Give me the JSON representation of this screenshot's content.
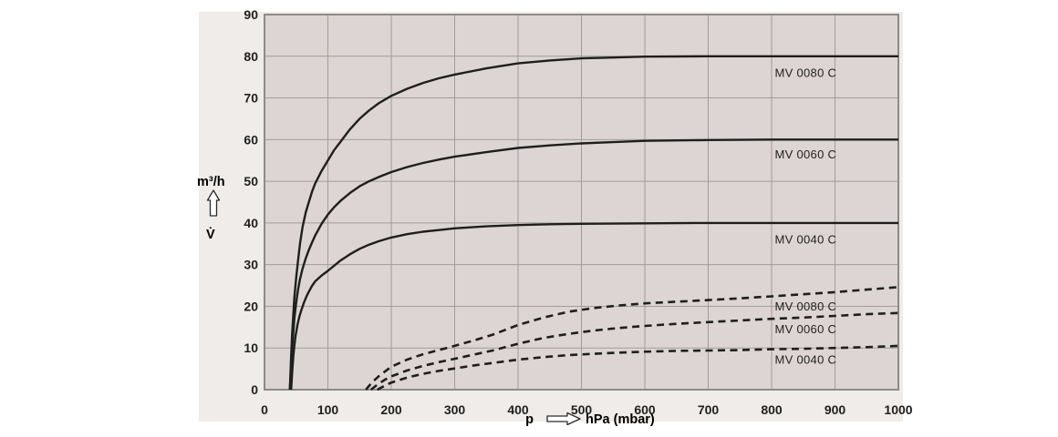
{
  "figure": {
    "y_axis_unit": "m³/h",
    "y_axis_symbol": "V̇",
    "x_axis_prefix": "p",
    "x_axis_unit": "hPa (mbar)"
  },
  "chart_data": {
    "type": "line",
    "title": "",
    "xlabel": "p → hPa (mbar)",
    "ylabel": "V̇ (m³/h)",
    "xlim": [
      0,
      1000
    ],
    "ylim": [
      0,
      90
    ],
    "x_ticks": [
      0,
      100,
      200,
      300,
      400,
      500,
      600,
      700,
      800,
      900,
      1000
    ],
    "y_ticks": [
      0,
      10,
      20,
      30,
      40,
      50,
      60,
      70,
      80,
      90
    ],
    "grid": true,
    "legend_position": "inline-right",
    "colors": {
      "panel_bg": "#efece9",
      "plot_bg": "#ddd5d3",
      "grid": "#a09c9a",
      "frame": "#8b8b8b",
      "curve": "#1e1e1e",
      "text": "#1f1f1f"
    },
    "series": [
      {
        "name": "MV 0080 C",
        "style": "solid",
        "label": {
          "text": "MV 0080 C",
          "x": 805,
          "y": 76
        },
        "points": [
          [
            40,
            0
          ],
          [
            41,
            4
          ],
          [
            42,
            8
          ],
          [
            43.5,
            13
          ],
          [
            45,
            17
          ],
          [
            47,
            22
          ],
          [
            50,
            27
          ],
          [
            53,
            31
          ],
          [
            56,
            35
          ],
          [
            60,
            39
          ],
          [
            65,
            42.5
          ],
          [
            70,
            45
          ],
          [
            75,
            47.5
          ],
          [
            80,
            49.5
          ],
          [
            90,
            52.5
          ],
          [
            100,
            55
          ],
          [
            110,
            57.5
          ],
          [
            120,
            59.5
          ],
          [
            135,
            62.5
          ],
          [
            150,
            65
          ],
          [
            165,
            67
          ],
          [
            180,
            68.7
          ],
          [
            200,
            70.5
          ],
          [
            225,
            72.2
          ],
          [
            250,
            73.6
          ],
          [
            275,
            74.7
          ],
          [
            300,
            75.6
          ],
          [
            350,
            77.1
          ],
          [
            400,
            78.3
          ],
          [
            450,
            79
          ],
          [
            500,
            79.5
          ],
          [
            550,
            79.7
          ],
          [
            600,
            79.9
          ],
          [
            700,
            80
          ],
          [
            800,
            80
          ],
          [
            900,
            80
          ],
          [
            1000,
            80
          ]
        ]
      },
      {
        "name": "MV 0060 C",
        "style": "solid",
        "label": {
          "text": "MV 0060 C",
          "x": 805,
          "y": 56.5
        },
        "points": [
          [
            40,
            0
          ],
          [
            41,
            3
          ],
          [
            42,
            6
          ],
          [
            43.5,
            10
          ],
          [
            45,
            13
          ],
          [
            47,
            17
          ],
          [
            50,
            21
          ],
          [
            53,
            24
          ],
          [
            56,
            26.5
          ],
          [
            60,
            29
          ],
          [
            65,
            31.5
          ],
          [
            70,
            33.5
          ],
          [
            75,
            35.3
          ],
          [
            80,
            37
          ],
          [
            90,
            39.8
          ],
          [
            100,
            42
          ],
          [
            110,
            43.8
          ],
          [
            120,
            45.3
          ],
          [
            135,
            47.2
          ],
          [
            150,
            48.8
          ],
          [
            165,
            50
          ],
          [
            180,
            51
          ],
          [
            200,
            52.2
          ],
          [
            225,
            53.4
          ],
          [
            250,
            54.4
          ],
          [
            275,
            55.2
          ],
          [
            300,
            55.9
          ],
          [
            350,
            57
          ],
          [
            400,
            58
          ],
          [
            450,
            58.6
          ],
          [
            500,
            59.1
          ],
          [
            550,
            59.4
          ],
          [
            600,
            59.7
          ],
          [
            700,
            59.9
          ],
          [
            800,
            60
          ],
          [
            900,
            60
          ],
          [
            1000,
            60
          ]
        ]
      },
      {
        "name": "MV 0040 C",
        "style": "solid",
        "label": {
          "text": "MV 0040 C",
          "x": 805,
          "y": 36
        },
        "points": [
          [
            42,
            0
          ],
          [
            43,
            2.5
          ],
          [
            44,
            5
          ],
          [
            45.5,
            8
          ],
          [
            47,
            10.5
          ],
          [
            49,
            13
          ],
          [
            52,
            15.5
          ],
          [
            55,
            17.5
          ],
          [
            58,
            19
          ],
          [
            62,
            20.8
          ],
          [
            66,
            22.3
          ],
          [
            70,
            23.5
          ],
          [
            75,
            24.9
          ],
          [
            80,
            26
          ],
          [
            90,
            27.4
          ],
          [
            100,
            28.5
          ],
          [
            120,
            31
          ],
          [
            135,
            32.5
          ],
          [
            150,
            33.8
          ],
          [
            165,
            34.8
          ],
          [
            180,
            35.6
          ],
          [
            200,
            36.5
          ],
          [
            225,
            37.3
          ],
          [
            250,
            37.9
          ],
          [
            275,
            38.3
          ],
          [
            300,
            38.7
          ],
          [
            350,
            39.2
          ],
          [
            400,
            39.5
          ],
          [
            450,
            39.7
          ],
          [
            500,
            39.8
          ],
          [
            600,
            39.9
          ],
          [
            700,
            40
          ],
          [
            800,
            40
          ],
          [
            900,
            40
          ],
          [
            1000,
            40
          ]
        ]
      },
      {
        "name": "MV 0080 C",
        "style": "dashed",
        "label": {
          "text": "MV 0080 C",
          "x": 805,
          "y": 20
        },
        "points": [
          [
            160,
            0
          ],
          [
            170,
            1.8
          ],
          [
            180,
            3.2
          ],
          [
            200,
            5.5
          ],
          [
            225,
            7.2
          ],
          [
            250,
            8.5
          ],
          [
            275,
            9.5
          ],
          [
            300,
            10.5
          ],
          [
            330,
            11.8
          ],
          [
            360,
            13.2
          ],
          [
            400,
            15.5
          ],
          [
            440,
            17.3
          ],
          [
            480,
            18.7
          ],
          [
            520,
            19.6
          ],
          [
            560,
            20.2
          ],
          [
            600,
            20.7
          ],
          [
            650,
            21.1
          ],
          [
            700,
            21.5
          ],
          [
            750,
            21.9
          ],
          [
            800,
            22.4
          ],
          [
            850,
            22.9
          ],
          [
            900,
            23.4
          ],
          [
            950,
            24
          ],
          [
            1000,
            24.6
          ]
        ]
      },
      {
        "name": "MV 0060 C",
        "style": "dashed",
        "label": {
          "text": "MV 0060 C",
          "x": 805,
          "y": 14.5
        },
        "points": [
          [
            168,
            0
          ],
          [
            178,
            1.2
          ],
          [
            190,
            2.4
          ],
          [
            200,
            3.2
          ],
          [
            225,
            4.6
          ],
          [
            250,
            5.7
          ],
          [
            275,
            6.6
          ],
          [
            300,
            7.4
          ],
          [
            330,
            8.4
          ],
          [
            360,
            9.4
          ],
          [
            400,
            11
          ],
          [
            440,
            12.4
          ],
          [
            480,
            13.4
          ],
          [
            520,
            14.2
          ],
          [
            560,
            14.8
          ],
          [
            600,
            15.3
          ],
          [
            650,
            15.8
          ],
          [
            700,
            16.2
          ],
          [
            750,
            16.6
          ],
          [
            800,
            17
          ],
          [
            850,
            17.3
          ],
          [
            900,
            17.7
          ],
          [
            950,
            18.1
          ],
          [
            1000,
            18.4
          ]
        ]
      },
      {
        "name": "MV 0040 C",
        "style": "dashed",
        "label": {
          "text": "MV 0040 C",
          "x": 805,
          "y": 7.2
        },
        "points": [
          [
            178,
            0
          ],
          [
            188,
            0.8
          ],
          [
            200,
            1.7
          ],
          [
            225,
            2.9
          ],
          [
            250,
            3.8
          ],
          [
            275,
            4.5
          ],
          [
            300,
            5.1
          ],
          [
            330,
            5.8
          ],
          [
            360,
            6.4
          ],
          [
            400,
            7.2
          ],
          [
            440,
            7.8
          ],
          [
            480,
            8.3
          ],
          [
            520,
            8.6
          ],
          [
            560,
            8.9
          ],
          [
            600,
            9.1
          ],
          [
            650,
            9.3
          ],
          [
            700,
            9.4
          ],
          [
            750,
            9.5
          ],
          [
            800,
            9.7
          ],
          [
            850,
            9.8
          ],
          [
            900,
            10
          ],
          [
            950,
            10.2
          ],
          [
            1000,
            10.5
          ]
        ]
      }
    ]
  }
}
